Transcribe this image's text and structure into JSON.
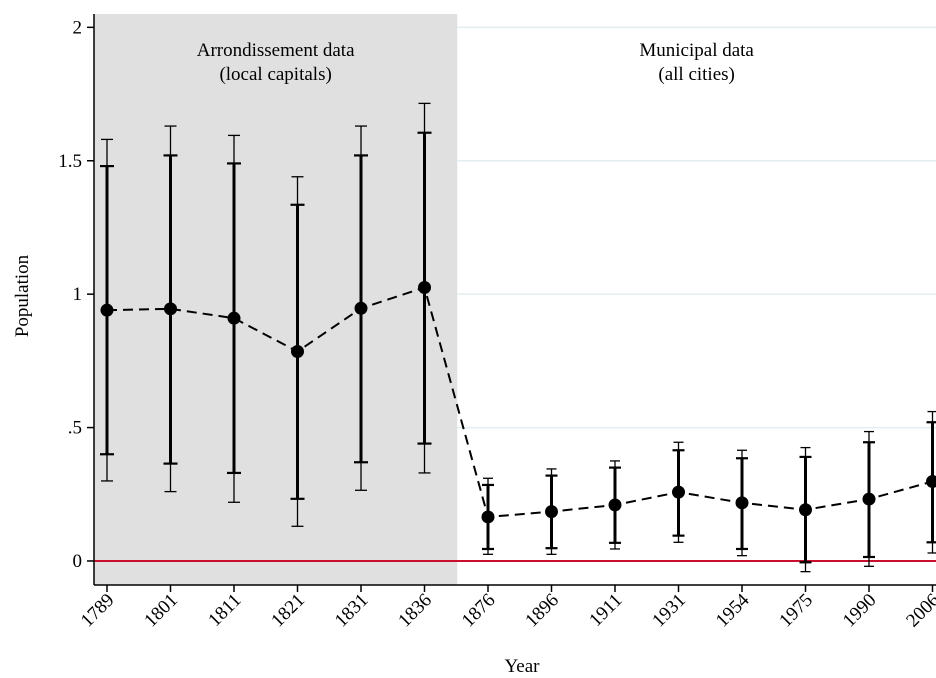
{
  "chart_data": {
    "type": "line",
    "xlabel": "Year",
    "ylabel": "Population",
    "categories": [
      "1789",
      "1801",
      "1811",
      "1821",
      "1831",
      "1836",
      "1876",
      "1896",
      "1911",
      "1931",
      "1954",
      "1975",
      "1990",
      "2006"
    ],
    "ylim": [
      -0.09,
      2.05
    ],
    "yticks": [
      {
        "value": 0,
        "label": "0"
      },
      {
        "value": 0.5,
        "label": ".5"
      },
      {
        "value": 1,
        "label": "1"
      },
      {
        "value": 1.5,
        "label": "1.5"
      },
      {
        "value": 2,
        "label": "2"
      }
    ],
    "grid": true,
    "reference_line": {
      "y": 0,
      "color": "#c8102e"
    },
    "series": [
      {
        "values": [
          0.94,
          0.945,
          0.91,
          0.785,
          0.947,
          1.025,
          0.165,
          0.185,
          0.21,
          0.258,
          0.218,
          0.192,
          0.232,
          0.298
        ],
        "ci90_low": [
          0.4,
          0.365,
          0.33,
          0.233,
          0.37,
          0.44,
          0.045,
          0.048,
          0.068,
          0.095,
          0.045,
          -0.005,
          0.015,
          0.07
        ],
        "ci90_high": [
          1.48,
          1.52,
          1.49,
          1.335,
          1.52,
          1.605,
          0.285,
          0.32,
          0.35,
          0.415,
          0.385,
          0.39,
          0.445,
          0.52
        ],
        "ci95_low": [
          0.3,
          0.26,
          0.22,
          0.13,
          0.265,
          0.33,
          0.025,
          0.025,
          0.045,
          0.07,
          0.02,
          -0.04,
          -0.02,
          0.03
        ],
        "ci95_high": [
          1.58,
          1.63,
          1.595,
          1.44,
          1.63,
          1.715,
          0.31,
          0.345,
          0.375,
          0.445,
          0.415,
          0.425,
          0.485,
          0.56
        ]
      }
    ],
    "regions": [
      {
        "from_category": 0,
        "to_category": 5,
        "label_line1": "Arrondissement data",
        "label_line2": "(local capitals)",
        "shaded": true,
        "color": "#e0e0e0"
      },
      {
        "from_category": 6,
        "to_category": 13,
        "label_line1": "Municipal data",
        "label_line2": "(all cities)",
        "shaded": false
      }
    ],
    "colors": {
      "grid": "#e4eef0",
      "series": "#000000",
      "shade": "#e0e0e0",
      "reference": "#c8102e"
    }
  }
}
